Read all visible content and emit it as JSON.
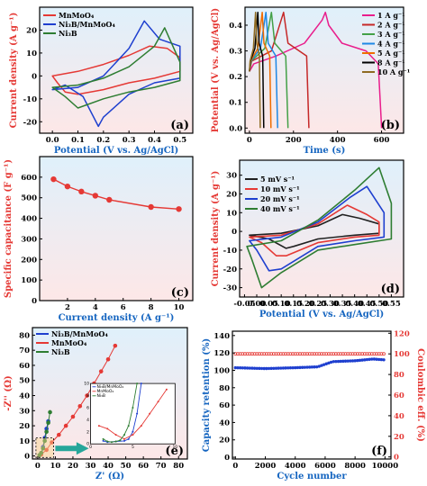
{
  "chart_data": [
    {
      "panel": "a",
      "type": "line",
      "xlabel": "Potential (V vs. Ag/AgCl)",
      "ylabel": "Current density (A g⁻¹)",
      "xlim": [
        -0.05,
        0.55
      ],
      "ylim": [
        -25,
        30
      ],
      "xticks": [
        0.0,
        0.1,
        0.2,
        0.3,
        0.4,
        0.5
      ],
      "xtick_labels": [
        "0.0",
        "0.1",
        "0.2",
        "0.3",
        "0.4",
        "0.5"
      ],
      "yticks": [
        -20,
        -10,
        0,
        10,
        20
      ],
      "ytick_labels": [
        "-20",
        "-10",
        "0",
        "10",
        "20"
      ],
      "legend_position": "top-left",
      "series": [
        {
          "name": "MnMoO4",
          "color": "#e53935",
          "x": [
            0,
            0.1,
            0.2,
            0.3,
            0.38,
            0.45,
            0.5,
            0.5,
            0.4,
            0.3,
            0.2,
            0.1,
            0.05,
            0.02,
            0
          ],
          "y": [
            0,
            2,
            5,
            9,
            13,
            12,
            8,
            2,
            -1,
            -3,
            -6,
            -8,
            -7,
            -3,
            0
          ]
        },
        {
          "name": "Ni3B/MnMoO4",
          "color": "#1e3fcf",
          "x": [
            0,
            0.1,
            0.2,
            0.3,
            0.36,
            0.42,
            0.5,
            0.5,
            0.4,
            0.3,
            0.2,
            0.18,
            0.12,
            0.05,
            0
          ],
          "y": [
            -6,
            -5,
            0,
            12,
            24,
            16,
            13,
            -1,
            -3,
            -8,
            -18,
            -22,
            -9,
            -4,
            -6
          ]
        },
        {
          "name": "Ni3B",
          "color": "#2e7d32",
          "x": [
            0,
            0.1,
            0.2,
            0.3,
            0.4,
            0.44,
            0.5,
            0.5,
            0.4,
            0.3,
            0.2,
            0.1,
            0.05,
            0
          ],
          "y": [
            -5,
            -4,
            -1,
            4,
            13,
            21,
            6,
            -2,
            -5,
            -7,
            -10,
            -14,
            -9,
            -5
          ]
        }
      ]
    },
    {
      "panel": "b",
      "type": "line",
      "xlabel": "Time (s)",
      "ylabel": "Potential (V vs. Ag/AgCl)",
      "xlim": [
        -20,
        700
      ],
      "ylim": [
        -0.02,
        0.47
      ],
      "xticks": [
        0,
        200,
        400,
        600
      ],
      "xtick_labels": [
        "0",
        "200",
        "400",
        "600"
      ],
      "yticks": [
        0.0,
        0.1,
        0.2,
        0.3,
        0.4
      ],
      "ytick_labels": [
        "0.0",
        "0.1",
        "0.2",
        "0.3",
        "0.4"
      ],
      "legend_position": "top-right",
      "series": [
        {
          "name": "1 A g⁻¹",
          "color": "#e91e8c",
          "x": [
            0,
            20,
            120,
            250,
            330,
            345,
            360,
            420,
            530,
            585,
            600
          ],
          "y": [
            0.22,
            0.25,
            0.28,
            0.33,
            0.42,
            0.45,
            0.4,
            0.33,
            0.3,
            0.25,
            0
          ]
        },
        {
          "name": "2 A g⁻¹",
          "color": "#c62828",
          "x": [
            0,
            10,
            100,
            155,
            175,
            260,
            270
          ],
          "y": [
            0.22,
            0.26,
            0.3,
            0.45,
            0.33,
            0.28,
            0
          ]
        },
        {
          "name": "3 A g⁻¹",
          "color": "#43a047",
          "x": [
            0,
            8,
            70,
            100,
            115,
            165,
            175
          ],
          "y": [
            0.22,
            0.26,
            0.31,
            0.45,
            0.33,
            0.28,
            0
          ]
        },
        {
          "name": "4 A g⁻¹",
          "color": "#1e88e5",
          "x": [
            0,
            6,
            50,
            75,
            85,
            120,
            128
          ],
          "y": [
            0.22,
            0.26,
            0.31,
            0.45,
            0.33,
            0.28,
            0
          ]
        },
        {
          "name": "5 A g⁻¹",
          "color": "#ef6c00",
          "x": [
            0,
            5,
            38,
            58,
            66,
            92,
            98
          ],
          "y": [
            0.22,
            0.26,
            0.31,
            0.45,
            0.33,
            0.28,
            0
          ]
        },
        {
          "name": "8 A g⁻¹",
          "color": "#000000",
          "x": [
            0,
            4,
            25,
            38,
            44,
            60,
            65
          ],
          "y": [
            0.22,
            0.26,
            0.31,
            0.45,
            0.33,
            0.28,
            0
          ]
        },
        {
          "name": "10 A g⁻¹",
          "color": "#8e6b23",
          "x": [
            0,
            3,
            18,
            28,
            33,
            45,
            49
          ],
          "y": [
            0.22,
            0.26,
            0.31,
            0.45,
            0.33,
            0.28,
            0
          ]
        }
      ]
    },
    {
      "panel": "c",
      "type": "line",
      "xlabel": "Current density (A g⁻¹)",
      "ylabel": "Specific capacitance (F g⁻¹)",
      "xlim": [
        0,
        11
      ],
      "ylim": [
        0,
        700
      ],
      "xticks": [
        2,
        4,
        6,
        8,
        10
      ],
      "xtick_labels": [
        "2",
        "4",
        "6",
        "8",
        "10"
      ],
      "yticks": [
        0,
        100,
        200,
        300,
        400,
        500,
        600
      ],
      "ytick_labels": [
        "0",
        "100",
        "200",
        "300",
        "400",
        "500",
        "600"
      ],
      "series": [
        {
          "name": "",
          "color": "#e53935",
          "x": [
            1,
            2,
            3,
            4,
            5,
            8,
            10
          ],
          "y": [
            590,
            555,
            530,
            510,
            490,
            455,
            445
          ]
        }
      ]
    },
    {
      "panel": "d",
      "type": "line",
      "xlabel": "Potential (V vs. Ag/AgCl)",
      "ylabel": "Current density (A g⁻¹)",
      "xlim": [
        -0.07,
        0.6
      ],
      "ylim": [
        -35,
        38
      ],
      "xticks": [
        -0.05,
        0.0,
        0.05,
        0.1,
        0.15,
        0.2,
        0.25,
        0.3,
        0.35,
        0.4,
        0.45,
        0.5,
        0.55
      ],
      "xtick_labels": [
        "-0.05",
        "0.00",
        "0.05",
        "0.10",
        "0.15",
        "0.20",
        "0.25",
        "0.30",
        "0.35",
        "0.40",
        "0.45",
        "0.50",
        "0.55"
      ],
      "yticks": [
        -30,
        -20,
        -10,
        0,
        10,
        20,
        30
      ],
      "ytick_labels": [
        "-30",
        "-20",
        "-10",
        "0",
        "10",
        "20",
        "30"
      ],
      "legend_position": "top-left",
      "series": [
        {
          "name": "5 mV s⁻¹",
          "color": "#212121",
          "x": [
            -0.03,
            0.1,
            0.25,
            0.35,
            0.42,
            0.5,
            0.5,
            0.4,
            0.25,
            0.15,
            0.12,
            0.05,
            -0.03
          ],
          "y": [
            -2,
            -1,
            3,
            9,
            7,
            4,
            -1,
            -2,
            -4,
            -8,
            -9,
            -4,
            -2
          ]
        },
        {
          "name": "10 mV s⁻¹",
          "color": "#e53935",
          "x": [
            -0.03,
            0.1,
            0.25,
            0.37,
            0.45,
            0.5,
            0.5,
            0.4,
            0.25,
            0.12,
            0.08,
            0.02,
            -0.03
          ],
          "y": [
            -3,
            -2,
            4,
            14,
            9,
            5,
            -2,
            -3,
            -6,
            -13,
            -13,
            -6,
            -3
          ]
        },
        {
          "name": "20 mV s⁻¹",
          "color": "#1e3fcf",
          "x": [
            -0.03,
            0.1,
            0.25,
            0.38,
            0.45,
            0.52,
            0.52,
            0.4,
            0.25,
            0.1,
            0.05,
            0,
            -0.03
          ],
          "y": [
            -5,
            -3,
            5,
            18,
            24,
            10,
            -3,
            -5,
            -8,
            -20,
            -21,
            -10,
            -5
          ]
        },
        {
          "name": "40 mV s⁻¹",
          "color": "#2e7d32",
          "x": [
            -0.04,
            0.1,
            0.25,
            0.4,
            0.5,
            0.55,
            0.55,
            0.4,
            0.25,
            0.1,
            0.02,
            -0.02,
            -0.04
          ],
          "y": [
            -8,
            -5,
            6,
            22,
            34,
            15,
            -4,
            -7,
            -10,
            -22,
            -30,
            -15,
            -8
          ]
        }
      ]
    },
    {
      "panel": "e",
      "type": "scatter",
      "xlabel": "Z' (Ω)",
      "ylabel": "-Z'' (Ω)",
      "xlim": [
        -3,
        85
      ],
      "ylim": [
        -2,
        85
      ],
      "xticks": [
        0,
        10,
        20,
        30,
        40,
        50,
        60,
        70,
        80
      ],
      "xtick_labels": [
        "0",
        "10",
        "20",
        "30",
        "40",
        "50",
        "60",
        "70",
        "80"
      ],
      "yticks": [
        0,
        10,
        20,
        30,
        40,
        50,
        60,
        70,
        80
      ],
      "ytick_labels": [
        "0",
        "10",
        "20",
        "30",
        "40",
        "50",
        "60",
        "70",
        "80"
      ],
      "legend_position": "top-left",
      "series": [
        {
          "name": "Ni3B/MnMoO4",
          "color": "#1e3fcf",
          "x": [
            1,
            2,
            3,
            4,
            5,
            6
          ],
          "y": [
            0.5,
            2,
            6,
            12,
            18,
            23
          ]
        },
        {
          "name": "MnMoO4",
          "color": "#e53935",
          "x": [
            2,
            5,
            8,
            12,
            16,
            20,
            24,
            28,
            32,
            36,
            40,
            44
          ],
          "y": [
            1,
            4,
            9,
            14,
            20,
            26,
            33,
            40,
            48,
            56,
            64,
            73
          ]
        },
        {
          "name": "Ni3B",
          "color": "#2e7d32",
          "x": [
            1,
            2,
            3,
            4,
            5,
            6,
            7
          ],
          "y": [
            0.5,
            2,
            5,
            10,
            16,
            22,
            29
          ]
        }
      ],
      "inset": {
        "legend": [
          "Ni3B/MnMoO4",
          "MnMoO4",
          "Ni3B"
        ],
        "xlim": [
          0,
          10
        ],
        "ylim": [
          0,
          10
        ],
        "xticks": [
          0,
          5,
          10
        ],
        "xtick_labels": [
          "0",
          "5",
          "10"
        ],
        "yticks": [
          0,
          2,
          4,
          6,
          8,
          10
        ],
        "ytick_labels": [
          "0",
          "2",
          "4",
          "6",
          "8",
          "10"
        ],
        "series": [
          {
            "color": "#1e3fcf",
            "x": [
              1.5,
              2,
              3,
              4,
              4.5,
              5,
              5.5,
              6
            ],
            "y": [
              0.5,
              0.3,
              0.4,
              0.5,
              0.8,
              2,
              5,
              10
            ]
          },
          {
            "color": "#e53935",
            "x": [
              1,
              2,
              3,
              4,
              5,
              6,
              7,
              8,
              9
            ],
            "y": [
              3,
              2.5,
              1.5,
              0.8,
              1.5,
              3,
              5,
              7,
              9
            ]
          },
          {
            "color": "#2e7d32",
            "x": [
              1.5,
              2,
              2.5,
              3,
              3.5,
              4,
              4.5,
              5,
              5.5
            ],
            "y": [
              0.8,
              0.4,
              0.3,
              0.4,
              0.6,
              1.5,
              3,
              6,
              10
            ]
          }
        ]
      }
    },
    {
      "panel": "f",
      "type": "scatter",
      "xlabel": "Cycle number",
      "ylabel": "Capacity retention (%)",
      "y2label": "Coulombic eff. (%)",
      "xlim": [
        -200,
        10400
      ],
      "ylim": [
        -2,
        145
      ],
      "y2lim": [
        -2,
        122
      ],
      "xticks": [
        0,
        2000,
        4000,
        6000,
        8000,
        10000
      ],
      "xtick_labels": [
        "0",
        "2000",
        "4000",
        "6000",
        "8000",
        "10000"
      ],
      "yticks": [
        0,
        20,
        40,
        60,
        80,
        100,
        120,
        140
      ],
      "ytick_labels": [
        "0",
        "20",
        "40",
        "60",
        "80",
        "100",
        "120",
        "140"
      ],
      "y2ticks": [
        0,
        20,
        40,
        60,
        80,
        100,
        120
      ],
      "y2tick_labels": [
        "0",
        "20",
        "40",
        "60",
        "80",
        "100",
        "120"
      ],
      "series": [
        {
          "name": "Capacity retention",
          "color": "#1e3fcf",
          "x": [
            0,
            2000,
            4000,
            5500,
            6500,
            8000,
            9200,
            10000
          ],
          "y": [
            103,
            102,
            103,
            104,
            110,
            111,
            113,
            112
          ]
        },
        {
          "name": "Coulombic efficiency",
          "color": "#e53935",
          "axis": "right",
          "x": [
            0,
            2000,
            4000,
            6000,
            8000,
            10000
          ],
          "y": [
            100,
            100,
            100,
            100,
            100,
            100
          ]
        }
      ]
    }
  ],
  "panels": {
    "a": {
      "letter": "(a)",
      "legend": [
        "MnMoO4",
        "Ni3B/MnMoO4",
        "Ni3B"
      ]
    },
    "b": {
      "letter": "(b)",
      "legend": [
        "1 A g⁻¹",
        "2 A g⁻¹",
        "3 A g⁻¹",
        "4 A g⁻¹",
        "5 A g⁻¹",
        "8 A g⁻¹",
        "10 A g⁻¹"
      ]
    },
    "c": {
      "letter": "(c)"
    },
    "d": {
      "letter": "(d)",
      "legend": [
        "5 mV s⁻¹",
        "10 mV s⁻¹",
        "20 mV s⁻¹",
        "40 mV s⁻¹"
      ]
    },
    "e": {
      "letter": "(e)",
      "legend": [
        "Ni3B/MnMoO4",
        "MnMoO4",
        "Ni3B"
      ]
    },
    "f": {
      "letter": "(f)"
    }
  },
  "colors": {
    "pink_background": "#fde7e7",
    "gradient_top": "#dff0fb",
    "axis_blue": "#1565c0",
    "axis_red": "#e53935",
    "highlight_box": "#f9d48a",
    "arrow": "#26a69a"
  }
}
